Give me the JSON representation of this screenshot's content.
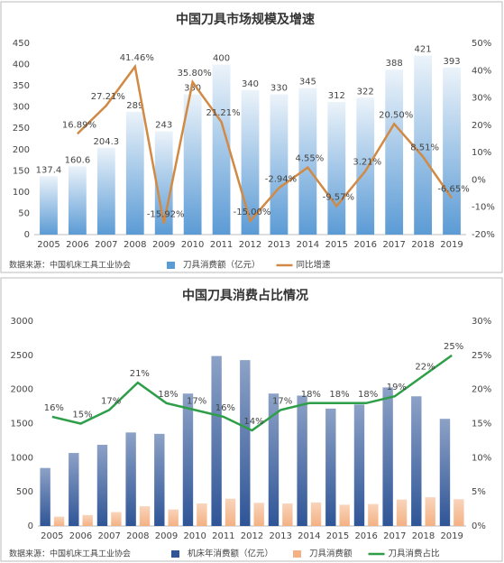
{
  "chart_data": [
    {
      "type": "combo",
      "title": "中国刀具市场规模及增速",
      "source": "数据来源：中国机床工具工业协会",
      "legend": "bottom",
      "grid": false,
      "categories": [
        "2005",
        "2006",
        "2007",
        "2008",
        "2009",
        "2010",
        "2011",
        "2012",
        "2013",
        "2014",
        "2015",
        "2016",
        "2017",
        "2018",
        "2019"
      ],
      "series": [
        {
          "name": "刀具消费额（亿元）",
          "kind": "bar",
          "color": "#5b9bd5",
          "show_labels": true,
          "values": [
            137.4,
            160.6,
            204.3,
            289,
            243,
            330,
            400,
            340,
            330,
            345,
            312,
            322,
            388,
            421,
            393
          ]
        },
        {
          "name": "同比增速",
          "kind": "line",
          "axis": "y2",
          "color": "#d08a45",
          "show_labels": true,
          "values": [
            null,
            16.89,
            27.21,
            41.46,
            -15.92,
            35.8,
            21.21,
            -15.0,
            -2.94,
            4.55,
            -9.57,
            3.21,
            20.5,
            8.51,
            -6.65
          ],
          "value_labels": [
            null,
            "16.89%",
            "27.21%",
            "41.46%",
            "-15.92%",
            "35.80%",
            "21.21%",
            "-15.00%",
            "-2.94%",
            "4.55%",
            "-9.57%",
            "3.21%",
            "20.50%",
            "8.51%",
            "-6.65%"
          ]
        }
      ],
      "ylim": [
        0,
        450
      ],
      "yticks": [
        0,
        50,
        100,
        150,
        200,
        250,
        300,
        350,
        400,
        450
      ],
      "y2lim": [
        -20,
        50
      ],
      "y2ticks": [
        {
          "value": -20,
          "label": "-20%"
        },
        {
          "value": -10,
          "label": "-10%"
        },
        {
          "value": 0,
          "label": "0%"
        },
        {
          "value": 10,
          "label": "10%"
        },
        {
          "value": 20,
          "label": "20%"
        },
        {
          "value": 30,
          "label": "30%"
        },
        {
          "value": 40,
          "label": "40%"
        },
        {
          "value": 50,
          "label": "50%"
        }
      ]
    },
    {
      "type": "combo",
      "title": "中国刀具消费占比情况",
      "source": "数据来源：中国机床工具工业协会",
      "legend": "bottom",
      "grid": false,
      "categories": [
        "2005",
        "2006",
        "2007",
        "2008",
        "2009",
        "2010",
        "2011",
        "2012",
        "2013",
        "2014",
        "2015",
        "2016",
        "2017",
        "2018",
        "2019"
      ],
      "series": [
        {
          "name": "机床年消费额（亿元）",
          "kind": "bar",
          "color": "#2f5597",
          "show_labels": false,
          "values": [
            850,
            1070,
            1190,
            1370,
            1350,
            1940,
            2490,
            2430,
            1940,
            1910,
            1720,
            1780,
            2030,
            1900,
            1570
          ]
        },
        {
          "name": "刀具消费额",
          "kind": "bar",
          "color": "#f4b183",
          "show_labels": false,
          "values": [
            137.4,
            160.6,
            204.3,
            289,
            243,
            330,
            400,
            340,
            330,
            345,
            312,
            322,
            388,
            421,
            393
          ]
        },
        {
          "name": "刀具消费占比",
          "kind": "line",
          "axis": "y2",
          "color": "#2e9e48",
          "show_labels": true,
          "values": [
            16,
            15,
            17,
            21,
            18,
            17,
            16,
            14,
            17,
            18,
            18,
            18,
            19,
            22,
            25
          ],
          "value_labels": [
            "16%",
            "15%",
            "17%",
            "21%",
            "18%",
            "17%",
            "16%",
            "14%",
            "17%",
            "18%",
            "18%",
            "18%",
            "19%",
            "22%",
            "25%"
          ]
        }
      ],
      "ylim": [
        0,
        3000
      ],
      "yticks": [
        0,
        500,
        1000,
        1500,
        2000,
        2500,
        3000
      ],
      "y2lim": [
        0,
        30
      ],
      "y2ticks": [
        {
          "value": 0,
          "label": "0%"
        },
        {
          "value": 5,
          "label": "5%"
        },
        {
          "value": 10,
          "label": "10%"
        },
        {
          "value": 15,
          "label": "15%"
        },
        {
          "value": 20,
          "label": "20%"
        },
        {
          "value": 25,
          "label": "25%"
        },
        {
          "value": 30,
          "label": "30%"
        }
      ]
    }
  ]
}
